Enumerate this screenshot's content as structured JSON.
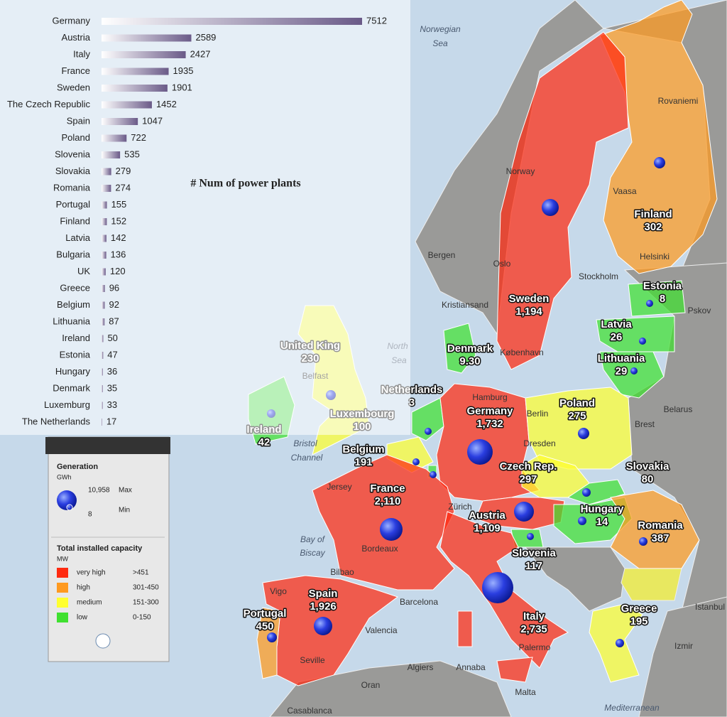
{
  "chart_data": {
    "type": "bar",
    "title": "# Num of power plants",
    "categories": [
      "Germany",
      "Austria",
      "Italy",
      "France",
      "Sweden",
      "The Czech Republic",
      "Spain",
      "Poland",
      "Slovenia",
      "Slovakia",
      "Romania",
      "Portugal",
      "Finland",
      "Latvia",
      "Bulgaria",
      "UK",
      "Greece",
      "Belgium",
      "Lithuania",
      "Ireland",
      "Estonia",
      "Hungary",
      "Denmark",
      "Luxemburg",
      "The Netherlands"
    ],
    "values": [
      7512,
      2589,
      2427,
      1935,
      1901,
      1452,
      1047,
      722,
      535,
      279,
      274,
      155,
      152,
      142,
      136,
      120,
      96,
      92,
      87,
      50,
      47,
      36,
      35,
      33,
      17
    ],
    "color": "#6a5a88"
  },
  "legend": {
    "title": "Generation",
    "unit": "GWh",
    "max": "10,958",
    "max_label": "Max",
    "min": "8",
    "min_label": "Min",
    "capacity_title": "Total installed capacity",
    "capacity_unit": "MW",
    "classes": [
      {
        "name": "very high",
        "range": ">451",
        "color": "#ff2a10"
      },
      {
        "name": "high",
        "range": "301-450",
        "color": "#ff9a20"
      },
      {
        "name": "medium",
        "range": "151-300",
        "color": "#ffff30"
      },
      {
        "name": "low",
        "range": "0-150",
        "color": "#40e030"
      }
    ]
  },
  "countries": [
    {
      "name": "Finland",
      "value": "302",
      "class": 1
    },
    {
      "name": "Sweden",
      "value": "1,194",
      "class": 0
    },
    {
      "name": "Estonia",
      "value": "8",
      "class": 3
    },
    {
      "name": "Latvia",
      "value": "26",
      "class": 3
    },
    {
      "name": "Lithuania",
      "value": "29",
      "class": 3
    },
    {
      "name": "Denmark",
      "value": "9.30",
      "class": 3
    },
    {
      "name": "United King",
      "value": "230",
      "class": 2
    },
    {
      "name": "Netherlands",
      "value": "3",
      "class": 3
    },
    {
      "name": "Luxembourg",
      "value": "100",
      "class": 3
    },
    {
      "name": "Germany",
      "value": "1,732",
      "class": 0
    },
    {
      "name": "Poland",
      "value": "275",
      "class": 2
    },
    {
      "name": "Ireland",
      "value": "42",
      "class": 3
    },
    {
      "name": "Belgium",
      "value": "191",
      "class": 2
    },
    {
      "name": "Czech Rep.",
      "value": "297",
      "class": 2
    },
    {
      "name": "Slovakia",
      "value": "80",
      "class": 3
    },
    {
      "name": "France",
      "value": "2,110",
      "class": 0
    },
    {
      "name": "Austria",
      "value": "1,109",
      "class": 0
    },
    {
      "name": "Hungary",
      "value": "14",
      "class": 3
    },
    {
      "name": "Romania",
      "value": "387",
      "class": 1
    },
    {
      "name": "Slovenia",
      "value": "117",
      "class": 3
    },
    {
      "name": "Spain",
      "value": "1,926",
      "class": 0
    },
    {
      "name": "Portugal",
      "value": "450",
      "class": 1
    },
    {
      "name": "Italy",
      "value": "2,735",
      "class": 0
    },
    {
      "name": "Greece",
      "value": "195",
      "class": 2
    }
  ],
  "places": [
    "Norwegian",
    "Sea",
    "North",
    "Sea",
    "Bay of",
    "Biscay",
    "Bristol",
    "Channel",
    "Mediterranean"
  ],
  "cities": [
    "Stockholm",
    "Oslo",
    "Bergen",
    "Kristiansand",
    "Helsinki",
    "Rovaniemi",
    "Vaasa",
    "Norway",
    "København",
    "Hamburg",
    "Berlin",
    "Dresden",
    "Brest",
    "Belarus",
    "Pskov",
    "Zürich",
    "Jersey",
    "Belfast",
    "Bordeaux",
    "Bilbao",
    "Barcelona",
    "Valencia",
    "Vigo",
    "Seville",
    "Algiers",
    "Annaba",
    "Oran",
    "Malta",
    "Casablanca",
    "Palermo",
    "Istanbul",
    "Izmir"
  ]
}
